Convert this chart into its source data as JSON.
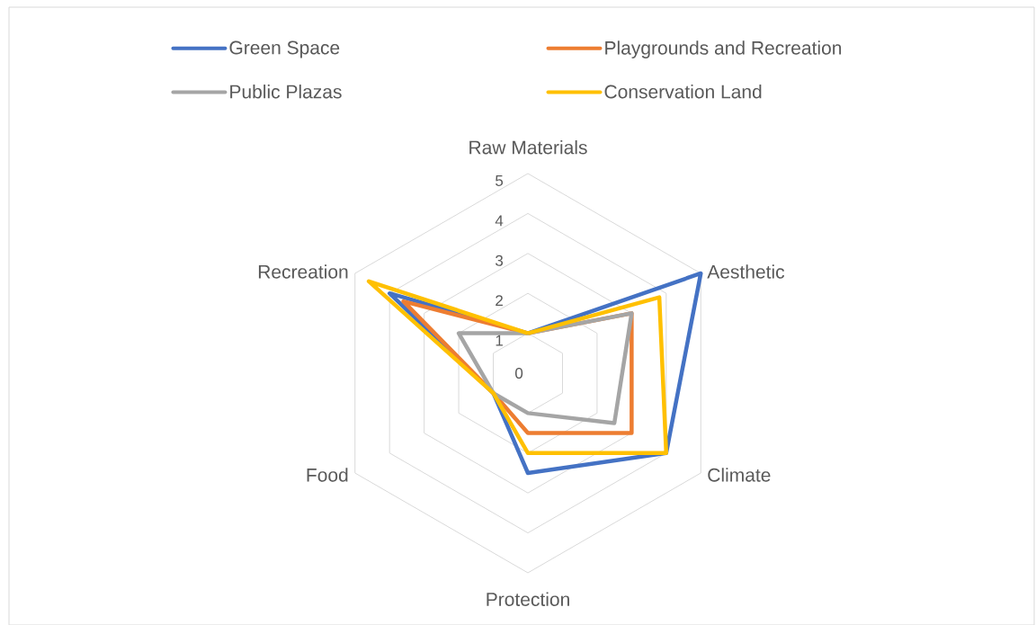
{
  "chart_data": {
    "type": "radar",
    "categories": [
      "Raw Materials",
      "Aesthetic",
      "Climate",
      "Protection",
      "Food",
      "Recreation"
    ],
    "series": [
      {
        "name": "Green Space",
        "color": "#4472c4",
        "values": [
          1,
          5,
          4,
          2.5,
          1,
          4
        ]
      },
      {
        "name": "Playgrounds and Recreation",
        "color": "#ed7d31",
        "values": [
          1,
          3,
          3,
          1.5,
          1,
          3.6
        ]
      },
      {
        "name": "Public Plazas",
        "color": "#a5a5a5",
        "values": [
          1,
          3,
          2.5,
          1,
          1,
          2
        ]
      },
      {
        "name": "Conservation Land",
        "color": "#ffc000",
        "values": [
          1,
          3.8,
          4,
          2,
          1,
          4.6
        ]
      }
    ],
    "ylim": [
      0,
      5
    ],
    "yticks": [
      0,
      1,
      2,
      3,
      4,
      5
    ],
    "grid": true,
    "legend": "top"
  }
}
